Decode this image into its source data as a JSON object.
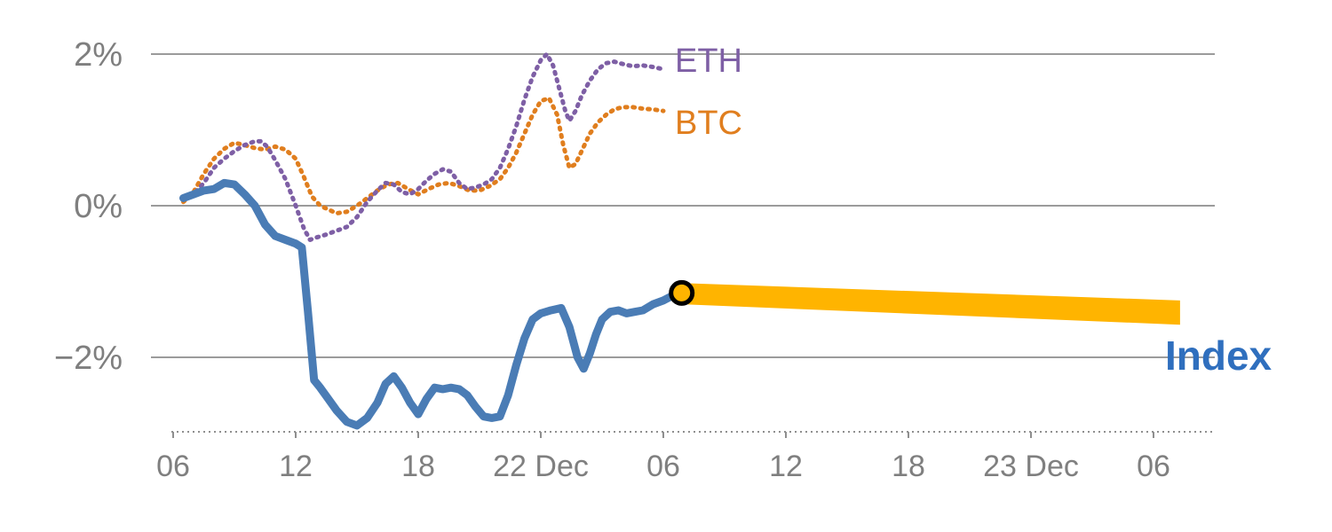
{
  "chart_data": {
    "type": "line",
    "title": "",
    "xlabel": "",
    "ylabel": "",
    "x_axis": {
      "unit": "hour",
      "range": [
        5,
        57
      ],
      "style": "dashed",
      "ticks": [
        {
          "h": 6,
          "label": "06"
        },
        {
          "h": 12,
          "label": "12"
        },
        {
          "h": 18,
          "label": "18"
        },
        {
          "h": 24,
          "label": "22 Dec"
        },
        {
          "h": 30,
          "label": "06"
        },
        {
          "h": 36,
          "label": "12"
        },
        {
          "h": 42,
          "label": "18"
        },
        {
          "h": 48,
          "label": "23 Dec"
        },
        {
          "h": 54,
          "label": "06"
        }
      ]
    },
    "y_axis": {
      "unit": "%",
      "range": [
        -3.2,
        2.5
      ],
      "gridlines": true,
      "ticks": [
        {
          "v": 2,
          "label": "2%"
        },
        {
          "v": 0,
          "label": "0%"
        },
        {
          "v": -2,
          "label": "−2%"
        }
      ]
    },
    "series": [
      {
        "name": "BTC",
        "color": "#e07e1e",
        "style": "dotted",
        "points": [
          [
            6.5,
            0.05
          ],
          [
            7,
            0.18
          ],
          [
            7.5,
            0.42
          ],
          [
            8,
            0.62
          ],
          [
            8.5,
            0.75
          ],
          [
            9,
            0.83
          ],
          [
            9.5,
            0.8
          ],
          [
            10,
            0.76
          ],
          [
            10.5,
            0.74
          ],
          [
            11,
            0.78
          ],
          [
            11.5,
            0.74
          ],
          [
            12,
            0.62
          ],
          [
            12.4,
            0.38
          ],
          [
            12.8,
            0.12
          ],
          [
            13.2,
            0.0
          ],
          [
            13.6,
            -0.05
          ],
          [
            14,
            -0.1
          ],
          [
            14.5,
            -0.08
          ],
          [
            15,
            0.0
          ],
          [
            15.5,
            0.1
          ],
          [
            16,
            0.2
          ],
          [
            16.5,
            0.28
          ],
          [
            17,
            0.3
          ],
          [
            17.5,
            0.22
          ],
          [
            18,
            0.15
          ],
          [
            18.5,
            0.22
          ],
          [
            19,
            0.28
          ],
          [
            19.5,
            0.3
          ],
          [
            20,
            0.26
          ],
          [
            20.5,
            0.2
          ],
          [
            21,
            0.2
          ],
          [
            21.5,
            0.26
          ],
          [
            22,
            0.35
          ],
          [
            22.4,
            0.5
          ],
          [
            22.8,
            0.7
          ],
          [
            23.2,
            0.95
          ],
          [
            23.6,
            1.2
          ],
          [
            24,
            1.38
          ],
          [
            24.4,
            1.42
          ],
          [
            24.8,
            1.2
          ],
          [
            25.1,
            0.8
          ],
          [
            25.4,
            0.5
          ],
          [
            25.7,
            0.55
          ],
          [
            26,
            0.72
          ],
          [
            26.4,
            0.95
          ],
          [
            26.8,
            1.1
          ],
          [
            27.2,
            1.2
          ],
          [
            27.6,
            1.27
          ],
          [
            28,
            1.3
          ],
          [
            28.5,
            1.3
          ],
          [
            29,
            1.28
          ],
          [
            29.5,
            1.27
          ],
          [
            30,
            1.25
          ]
        ]
      },
      {
        "name": "ETH",
        "color": "#7e5fa5",
        "style": "dotted",
        "points": [
          [
            6.5,
            0.08
          ],
          [
            7,
            0.15
          ],
          [
            7.5,
            0.3
          ],
          [
            8,
            0.5
          ],
          [
            8.5,
            0.62
          ],
          [
            9,
            0.72
          ],
          [
            9.5,
            0.8
          ],
          [
            10,
            0.85
          ],
          [
            10.3,
            0.85
          ],
          [
            10.6,
            0.78
          ],
          [
            11,
            0.6
          ],
          [
            11.5,
            0.35
          ],
          [
            12,
            0.0
          ],
          [
            12.4,
            -0.3
          ],
          [
            12.7,
            -0.45
          ],
          [
            13,
            -0.42
          ],
          [
            13.5,
            -0.38
          ],
          [
            14,
            -0.33
          ],
          [
            14.5,
            -0.28
          ],
          [
            15,
            -0.15
          ],
          [
            15.5,
            0.05
          ],
          [
            16,
            0.2
          ],
          [
            16.4,
            0.3
          ],
          [
            16.8,
            0.28
          ],
          [
            17.2,
            0.18
          ],
          [
            17.6,
            0.15
          ],
          [
            18,
            0.22
          ],
          [
            18.4,
            0.33
          ],
          [
            18.8,
            0.42
          ],
          [
            19.2,
            0.48
          ],
          [
            19.6,
            0.45
          ],
          [
            20,
            0.3
          ],
          [
            20.4,
            0.22
          ],
          [
            20.8,
            0.24
          ],
          [
            21.2,
            0.28
          ],
          [
            21.6,
            0.35
          ],
          [
            22,
            0.5
          ],
          [
            22.4,
            0.75
          ],
          [
            22.8,
            1.05
          ],
          [
            23.2,
            1.4
          ],
          [
            23.6,
            1.7
          ],
          [
            24,
            1.92
          ],
          [
            24.3,
            2.0
          ],
          [
            24.6,
            1.85
          ],
          [
            24.9,
            1.55
          ],
          [
            25.2,
            1.25
          ],
          [
            25.4,
            1.12
          ],
          [
            25.7,
            1.25
          ],
          [
            26,
            1.45
          ],
          [
            26.4,
            1.65
          ],
          [
            26.8,
            1.8
          ],
          [
            27.2,
            1.88
          ],
          [
            27.6,
            1.9
          ],
          [
            28,
            1.87
          ],
          [
            28.5,
            1.84
          ],
          [
            29,
            1.85
          ],
          [
            29.5,
            1.83
          ],
          [
            30,
            1.8
          ]
        ]
      },
      {
        "name": "Index",
        "color": "#4a7cb5",
        "style": "solid",
        "points": [
          [
            6.5,
            0.1
          ],
          [
            7,
            0.15
          ],
          [
            7.5,
            0.2
          ],
          [
            8,
            0.22
          ],
          [
            8.5,
            0.3
          ],
          [
            9,
            0.28
          ],
          [
            9.5,
            0.15
          ],
          [
            10,
            0.0
          ],
          [
            10.5,
            -0.25
          ],
          [
            11,
            -0.4
          ],
          [
            11.5,
            -0.45
          ],
          [
            12,
            -0.5
          ],
          [
            12.3,
            -0.55
          ],
          [
            12.6,
            -1.4
          ],
          [
            12.9,
            -2.3
          ],
          [
            13.2,
            -2.4
          ],
          [
            13.6,
            -2.55
          ],
          [
            14,
            -2.7
          ],
          [
            14.5,
            -2.85
          ],
          [
            15,
            -2.9
          ],
          [
            15.5,
            -2.8
          ],
          [
            16,
            -2.6
          ],
          [
            16.4,
            -2.35
          ],
          [
            16.8,
            -2.25
          ],
          [
            17.2,
            -2.4
          ],
          [
            17.6,
            -2.6
          ],
          [
            18,
            -2.75
          ],
          [
            18.4,
            -2.55
          ],
          [
            18.8,
            -2.4
          ],
          [
            19.2,
            -2.42
          ],
          [
            19.6,
            -2.4
          ],
          [
            20,
            -2.42
          ],
          [
            20.4,
            -2.5
          ],
          [
            20.8,
            -2.65
          ],
          [
            21.2,
            -2.78
          ],
          [
            21.6,
            -2.8
          ],
          [
            22,
            -2.78
          ],
          [
            22.4,
            -2.5
          ],
          [
            22.8,
            -2.1
          ],
          [
            23.2,
            -1.75
          ],
          [
            23.6,
            -1.5
          ],
          [
            24,
            -1.42
          ],
          [
            24.5,
            -1.38
          ],
          [
            25,
            -1.35
          ],
          [
            25.4,
            -1.6
          ],
          [
            25.8,
            -2.0
          ],
          [
            26.1,
            -2.15
          ],
          [
            26.4,
            -1.95
          ],
          [
            26.7,
            -1.7
          ],
          [
            27,
            -1.5
          ],
          [
            27.4,
            -1.4
          ],
          [
            27.8,
            -1.38
          ],
          [
            28.2,
            -1.42
          ],
          [
            28.6,
            -1.4
          ],
          [
            29,
            -1.38
          ],
          [
            29.5,
            -1.3
          ],
          [
            30,
            -1.25
          ],
          [
            30.5,
            -1.18
          ],
          [
            30.9,
            -1.15
          ]
        ]
      }
    ],
    "forecast_band": {
      "color": "#ffb400",
      "top": [
        [
          30.9,
          -1.02
        ],
        [
          55.3,
          -1.25
        ]
      ],
      "bottom": [
        [
          30.9,
          -1.3
        ],
        [
          55.3,
          -1.57
        ]
      ]
    },
    "marker": {
      "h": 30.9,
      "v": -1.15,
      "fill": "#ffb400",
      "stroke": "#000000"
    },
    "labels": [
      {
        "text": "ETH",
        "color": "#7e5fa5"
      },
      {
        "text": "BTC",
        "color": "#e07e1e"
      },
      {
        "text": "Index",
        "color": "#2f6fbe"
      }
    ],
    "colors": {
      "gridline": "#9b9b9b",
      "axis_line": "#8f8f8f",
      "tick_label": "#7f7f7f",
      "background": "#ffffff"
    }
  }
}
